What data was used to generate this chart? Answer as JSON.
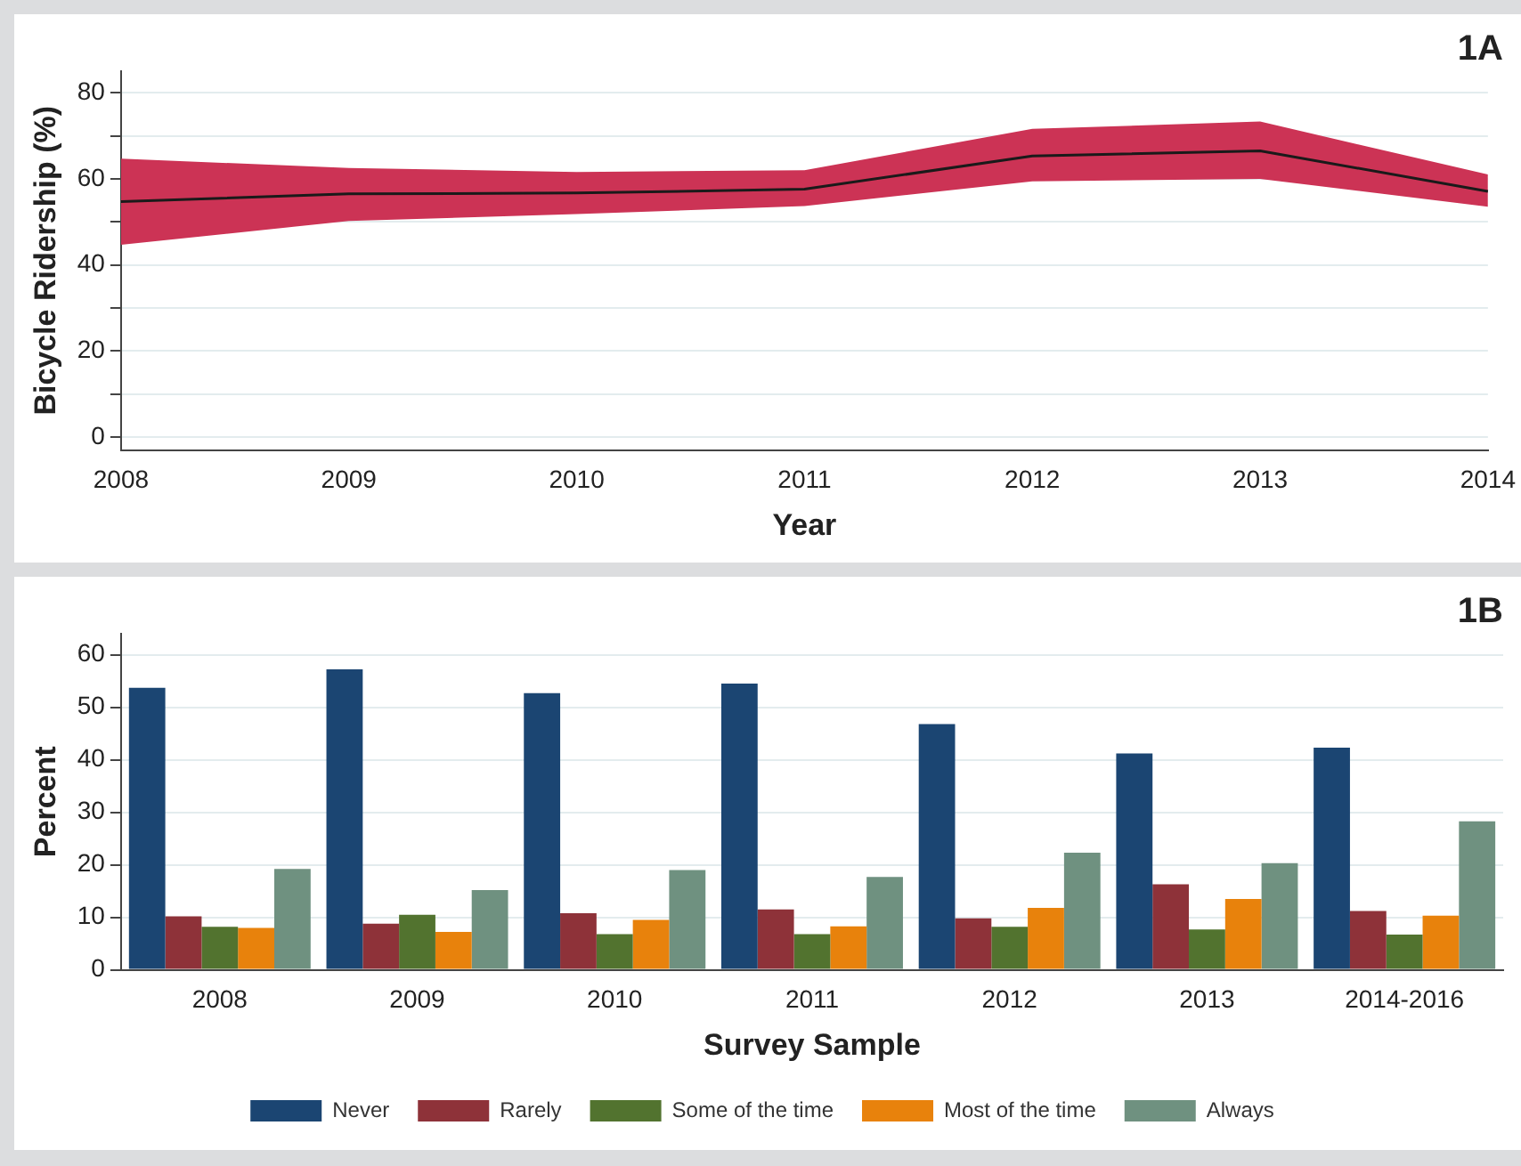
{
  "chart_data": [
    {
      "type": "line",
      "title": "1A",
      "xlabel": "Year",
      "ylabel": "Bicycle Ridership (%)",
      "categories": [
        "2008",
        "2009",
        "2010",
        "2011",
        "2012",
        "2013",
        "2014"
      ],
      "series": [
        {
          "color": "#1a1a1a",
          "values": [
            54.7,
            56.5,
            56.7,
            57.6,
            65.3,
            66.5,
            57.1
          ],
          "lower": [
            44.7,
            50.2,
            51.8,
            53.7,
            59.4,
            60,
            53.5
          ],
          "upper": [
            64.7,
            62.5,
            61.6,
            62,
            71.6,
            73.3,
            61
          ]
        }
      ],
      "ylim": [
        -3,
        85
      ],
      "yticks": [
        0,
        {
          "value": 10,
          "label": null
        },
        20,
        {
          "value": 30,
          "label": null
        },
        40,
        {
          "value": 50,
          "label": null
        },
        60,
        {
          "value": 70,
          "label": null
        },
        80
      ],
      "grid": "y",
      "legend": false
    },
    {
      "type": "bar",
      "title": "1B",
      "xlabel": "Survey Sample",
      "ylabel": "Percent",
      "categories": [
        "2008",
        "2009",
        "2010",
        "2011",
        "2012",
        "2013",
        "2014-2016"
      ],
      "series": [
        {
          "name": "Never",
          "color": "#1b4572",
          "values": [
            53.7,
            57.2,
            52.7,
            54.5,
            46.8,
            41.2,
            42.3
          ]
        },
        {
          "name": "Rarely",
          "color": "#8e3239",
          "values": [
            10.2,
            8.8,
            10.8,
            11.5,
            9.8,
            16.3,
            11.2
          ]
        },
        {
          "name": "Some of the time",
          "color": "#52732f",
          "values": [
            8.2,
            10.5,
            6.8,
            6.8,
            8.2,
            7.7,
            6.7
          ]
        },
        {
          "name": "Most of the time",
          "color": "#e8820c",
          "values": [
            8,
            7.2,
            9.5,
            8.3,
            11.8,
            13.5,
            10.3
          ]
        },
        {
          "name": "Always",
          "color": "#6f9180",
          "values": [
            19.2,
            15.2,
            19,
            17.7,
            22.3,
            20.3,
            28.3
          ]
        }
      ],
      "ylim": [
        0,
        64
      ],
      "yticks": [
        0,
        10,
        20,
        30,
        40,
        50,
        60
      ],
      "grid": "y",
      "legend": "bottom"
    }
  ]
}
